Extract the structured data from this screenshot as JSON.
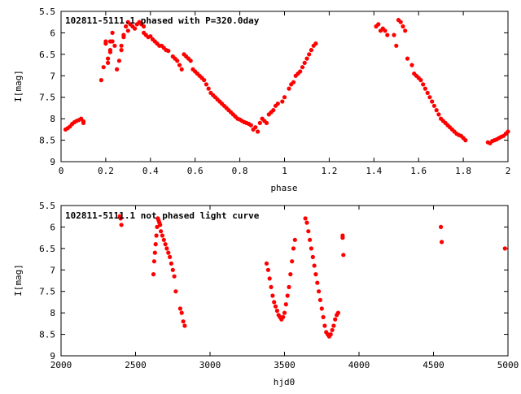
{
  "chart_data": [
    {
      "type": "scatter",
      "title": "102811-5111.1 phased with P=320.0day",
      "xlabel": "phase",
      "ylabel": "I[mag]",
      "xlim": [
        0,
        2
      ],
      "ylim": [
        9,
        5.5
      ],
      "y_inverted": true,
      "grid": false,
      "marker_color": "#ff0000",
      "xticks": [
        "0",
        "0.2",
        "0.4",
        "0.6",
        "0.8",
        "1",
        "1.2",
        "1.4",
        "1.6",
        "1.8",
        "2"
      ],
      "yticks": [
        "5.5",
        "6",
        "6.5",
        "7",
        "7.5",
        "8",
        "8.5",
        "9"
      ],
      "points": [
        [
          0.02,
          8.25
        ],
        [
          0.03,
          8.22
        ],
        [
          0.04,
          8.18
        ],
        [
          0.05,
          8.12
        ],
        [
          0.06,
          8.08
        ],
        [
          0.07,
          8.05
        ],
        [
          0.08,
          8.03
        ],
        [
          0.09,
          8.0
        ],
        [
          0.1,
          8.06
        ],
        [
          0.1,
          8.1
        ],
        [
          0.18,
          7.1
        ],
        [
          0.19,
          6.8
        ],
        [
          0.2,
          6.2
        ],
        [
          0.2,
          6.25
        ],
        [
          0.21,
          6.6
        ],
        [
          0.21,
          6.7
        ],
        [
          0.22,
          6.4
        ],
        [
          0.22,
          6.45
        ],
        [
          0.22,
          6.2
        ],
        [
          0.23,
          6.0
        ],
        [
          0.23,
          6.2
        ],
        [
          0.24,
          6.3
        ],
        [
          0.25,
          6.85
        ],
        [
          0.26,
          6.65
        ],
        [
          0.27,
          6.4
        ],
        [
          0.27,
          6.3
        ],
        [
          0.28,
          6.05
        ],
        [
          0.28,
          6.1
        ],
        [
          0.29,
          5.85
        ],
        [
          0.3,
          5.95
        ],
        [
          0.3,
          5.75
        ],
        [
          0.31,
          5.8
        ],
        [
          0.32,
          5.85
        ],
        [
          0.33,
          5.9
        ],
        [
          0.34,
          5.8
        ],
        [
          0.35,
          5.75
        ],
        [
          0.36,
          5.8
        ],
        [
          0.37,
          5.85
        ],
        [
          0.37,
          6.0
        ],
        [
          0.38,
          6.05
        ],
        [
          0.39,
          6.1
        ],
        [
          0.4,
          6.08
        ],
        [
          0.41,
          6.15
        ],
        [
          0.42,
          6.2
        ],
        [
          0.43,
          6.25
        ],
        [
          0.44,
          6.3
        ],
        [
          0.45,
          6.3
        ],
        [
          0.46,
          6.35
        ],
        [
          0.47,
          6.4
        ],
        [
          0.48,
          6.42
        ],
        [
          0.5,
          6.55
        ],
        [
          0.51,
          6.6
        ],
        [
          0.52,
          6.65
        ],
        [
          0.53,
          6.75
        ],
        [
          0.54,
          6.85
        ],
        [
          0.55,
          6.5
        ],
        [
          0.56,
          6.55
        ],
        [
          0.57,
          6.6
        ],
        [
          0.58,
          6.65
        ],
        [
          0.59,
          6.85
        ],
        [
          0.6,
          6.9
        ],
        [
          0.61,
          6.95
        ],
        [
          0.62,
          7.0
        ],
        [
          0.63,
          7.05
        ],
        [
          0.64,
          7.1
        ],
        [
          0.65,
          7.2
        ],
        [
          0.66,
          7.3
        ],
        [
          0.67,
          7.4
        ],
        [
          0.68,
          7.45
        ],
        [
          0.69,
          7.5
        ],
        [
          0.7,
          7.55
        ],
        [
          0.71,
          7.6
        ],
        [
          0.72,
          7.65
        ],
        [
          0.73,
          7.7
        ],
        [
          0.74,
          7.75
        ],
        [
          0.75,
          7.8
        ],
        [
          0.76,
          7.85
        ],
        [
          0.77,
          7.9
        ],
        [
          0.78,
          7.95
        ],
        [
          0.79,
          8.0
        ],
        [
          0.8,
          8.02
        ],
        [
          0.81,
          8.05
        ],
        [
          0.82,
          8.08
        ],
        [
          0.83,
          8.1
        ],
        [
          0.84,
          8.12
        ],
        [
          0.85,
          8.15
        ],
        [
          0.86,
          8.25
        ],
        [
          0.87,
          8.2
        ],
        [
          0.88,
          8.3
        ],
        [
          0.89,
          8.1
        ],
        [
          0.9,
          8.0
        ],
        [
          0.91,
          8.05
        ],
        [
          0.92,
          8.1
        ],
        [
          0.93,
          7.9
        ],
        [
          0.94,
          7.85
        ],
        [
          0.95,
          7.8
        ],
        [
          0.96,
          7.7
        ],
        [
          0.97,
          7.65
        ],
        [
          0.99,
          7.6
        ],
        [
          1.0,
          7.5
        ],
        [
          1.02,
          7.3
        ],
        [
          1.03,
          7.2
        ],
        [
          1.04,
          7.15
        ],
        [
          1.05,
          7.0
        ],
        [
          1.06,
          6.95
        ],
        [
          1.07,
          6.9
        ],
        [
          1.08,
          6.8
        ],
        [
          1.09,
          6.7
        ],
        [
          1.1,
          6.6
        ],
        [
          1.11,
          6.5
        ],
        [
          1.12,
          6.4
        ],
        [
          1.13,
          6.3
        ],
        [
          1.14,
          6.25
        ],
        [
          1.41,
          5.85
        ],
        [
          1.42,
          5.8
        ],
        [
          1.43,
          5.95
        ],
        [
          1.44,
          5.9
        ],
        [
          1.45,
          5.95
        ],
        [
          1.46,
          6.05
        ],
        [
          1.49,
          6.05
        ],
        [
          1.5,
          6.3
        ],
        [
          1.51,
          5.7
        ],
        [
          1.52,
          5.75
        ],
        [
          1.53,
          5.85
        ],
        [
          1.54,
          5.95
        ],
        [
          1.55,
          6.6
        ],
        [
          1.57,
          6.75
        ],
        [
          1.58,
          6.95
        ],
        [
          1.59,
          7.0
        ],
        [
          1.6,
          7.05
        ],
        [
          1.61,
          7.1
        ],
        [
          1.62,
          7.2
        ],
        [
          1.63,
          7.3
        ],
        [
          1.64,
          7.4
        ],
        [
          1.65,
          7.5
        ],
        [
          1.66,
          7.6
        ],
        [
          1.67,
          7.7
        ],
        [
          1.68,
          7.8
        ],
        [
          1.69,
          7.9
        ],
        [
          1.7,
          8.0
        ],
        [
          1.71,
          8.05
        ],
        [
          1.72,
          8.1
        ],
        [
          1.73,
          8.15
        ],
        [
          1.74,
          8.2
        ],
        [
          1.75,
          8.25
        ],
        [
          1.76,
          8.3
        ],
        [
          1.77,
          8.35
        ],
        [
          1.78,
          8.38
        ],
        [
          1.79,
          8.4
        ],
        [
          1.8,
          8.45
        ],
        [
          1.81,
          8.5
        ],
        [
          1.91,
          8.55
        ],
        [
          1.92,
          8.57
        ],
        [
          1.93,
          8.52
        ],
        [
          1.94,
          8.5
        ],
        [
          1.95,
          8.48
        ],
        [
          1.96,
          8.45
        ],
        [
          1.97,
          8.42
        ],
        [
          1.98,
          8.4
        ],
        [
          1.99,
          8.35
        ],
        [
          2.0,
          8.3
        ]
      ]
    },
    {
      "type": "scatter",
      "title": "102811-5111.1 not phased light curve",
      "xlabel": "hjd0",
      "ylabel": "I[mag]",
      "xlim": [
        2000,
        5000
      ],
      "ylim": [
        9,
        5.5
      ],
      "y_inverted": true,
      "grid": false,
      "marker_color": "#ff0000",
      "xticks": [
        "2000",
        "2500",
        "3000",
        "3500",
        "4000",
        "4500",
        "5000"
      ],
      "yticks": [
        "5.5",
        "6",
        "6.5",
        "7",
        "7.5",
        "8",
        "8.5",
        "9"
      ],
      "points": [
        [
          2395,
          5.75
        ],
        [
          2400,
          5.8
        ],
        [
          2405,
          5.95
        ],
        [
          2620,
          7.1
        ],
        [
          2625,
          6.8
        ],
        [
          2630,
          6.6
        ],
        [
          2635,
          6.4
        ],
        [
          2640,
          6.2
        ],
        [
          2645,
          6.0
        ],
        [
          2650,
          5.8
        ],
        [
          2655,
          5.85
        ],
        [
          2660,
          5.9
        ],
        [
          2665,
          5.95
        ],
        [
          2670,
          6.1
        ],
        [
          2680,
          6.2
        ],
        [
          2690,
          6.3
        ],
        [
          2700,
          6.4
        ],
        [
          2710,
          6.5
        ],
        [
          2720,
          6.6
        ],
        [
          2730,
          6.7
        ],
        [
          2740,
          6.85
        ],
        [
          2750,
          7.0
        ],
        [
          2760,
          7.15
        ],
        [
          2770,
          7.5
        ],
        [
          2800,
          7.9
        ],
        [
          2810,
          8.0
        ],
        [
          2820,
          8.2
        ],
        [
          2830,
          8.3
        ],
        [
          3380,
          6.85
        ],
        [
          3390,
          7.0
        ],
        [
          3400,
          7.2
        ],
        [
          3410,
          7.4
        ],
        [
          3420,
          7.6
        ],
        [
          3430,
          7.75
        ],
        [
          3440,
          7.85
        ],
        [
          3450,
          7.95
        ],
        [
          3460,
          8.05
        ],
        [
          3470,
          8.1
        ],
        [
          3480,
          8.15
        ],
        [
          3490,
          8.1
        ],
        [
          3500,
          8.0
        ],
        [
          3510,
          7.8
        ],
        [
          3520,
          7.6
        ],
        [
          3530,
          7.4
        ],
        [
          3540,
          7.1
        ],
        [
          3550,
          6.8
        ],
        [
          3560,
          6.5
        ],
        [
          3570,
          6.3
        ],
        [
          3640,
          5.8
        ],
        [
          3650,
          5.9
        ],
        [
          3660,
          6.1
        ],
        [
          3670,
          6.3
        ],
        [
          3680,
          6.5
        ],
        [
          3690,
          6.7
        ],
        [
          3700,
          6.9
        ],
        [
          3710,
          7.1
        ],
        [
          3720,
          7.3
        ],
        [
          3730,
          7.5
        ],
        [
          3740,
          7.7
        ],
        [
          3750,
          7.9
        ],
        [
          3760,
          8.1
        ],
        [
          3770,
          8.3
        ],
        [
          3780,
          8.45
        ],
        [
          3790,
          8.5
        ],
        [
          3800,
          8.55
        ],
        [
          3810,
          8.5
        ],
        [
          3820,
          8.4
        ],
        [
          3830,
          8.3
        ],
        [
          3840,
          8.15
        ],
        [
          3850,
          8.05
        ],
        [
          3860,
          8.0
        ],
        [
          3890,
          6.2
        ],
        [
          3890,
          6.25
        ],
        [
          3895,
          6.65
        ],
        [
          4550,
          6.0
        ],
        [
          4555,
          6.35
        ],
        [
          4980,
          6.5
        ]
      ]
    }
  ]
}
